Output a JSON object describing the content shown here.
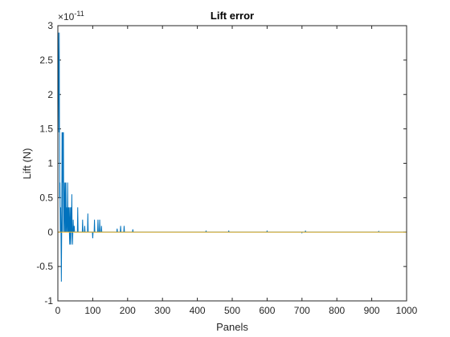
{
  "chart_data": {
    "type": "line",
    "title": "Lift error",
    "x_label": "Panels",
    "y_label": "Lift (N)",
    "y_multiplier": {
      "base": "×10",
      "exponent": "-11"
    },
    "xlim": [
      0,
      1000
    ],
    "xticks": [
      0,
      100,
      200,
      300,
      400,
      500,
      600,
      700,
      800,
      900,
      1000
    ],
    "ylim": [
      -1,
      3
    ],
    "yticks": [
      -1,
      -0.5,
      0,
      0.5,
      1,
      1.5,
      2,
      2.5,
      3
    ],
    "series": [
      {
        "color": "#0072BD",
        "x": [
          1,
          2,
          3,
          4,
          5,
          6,
          7,
          8,
          9,
          10,
          11,
          12,
          13,
          14,
          15,
          16,
          17,
          18,
          19,
          20,
          21,
          22,
          23,
          24,
          25,
          27,
          28,
          29,
          30,
          31,
          32,
          33,
          34,
          35,
          36,
          37,
          38,
          39,
          40,
          41,
          42,
          43,
          44,
          45,
          47,
          48,
          56,
          57,
          58,
          70,
          71,
          72,
          76,
          77,
          78,
          85,
          86,
          87,
          99,
          100,
          101,
          104,
          105,
          106,
          114,
          115,
          116,
          119,
          120,
          121,
          124,
          125,
          126,
          169,
          170,
          171,
          179,
          180,
          181,
          189,
          190,
          191,
          214,
          215,
          216,
          424,
          425,
          426,
          489,
          490,
          491,
          599,
          600,
          601,
          699,
          700,
          701,
          709,
          710,
          711,
          919,
          920,
          921,
          1000
        ],
        "values": [
          2.9,
          2.1,
          1.45,
          2.9,
          0.5,
          0.72,
          0,
          0.36,
          0,
          -0.72,
          0,
          1.45,
          0,
          1.45,
          0.72,
          1.45,
          0,
          0.72,
          0,
          0.36,
          0.72,
          0,
          0.72,
          0,
          0.36,
          0,
          0.72,
          0,
          0.36,
          0,
          0.36,
          0,
          -0.18,
          0.36,
          0,
          -0.18,
          0.36,
          0,
          0.55,
          0,
          -0.18,
          0,
          0.18,
          0,
          0.09,
          0,
          0,
          0.36,
          0,
          0,
          0.18,
          0,
          0,
          0.09,
          0,
          0,
          0.27,
          0,
          0,
          -0.09,
          0,
          0,
          0.18,
          0,
          0,
          0.18,
          0,
          0,
          0.18,
          0,
          0,
          0.09,
          0,
          0,
          0.05,
          0,
          0,
          0.09,
          0,
          0,
          0.09,
          0,
          0,
          0.04,
          0,
          0,
          0.02,
          0,
          0,
          0.02,
          0,
          0,
          0.02,
          0,
          0,
          -0.01,
          0,
          0,
          0.02,
          0,
          0,
          0.01,
          0,
          0
        ]
      },
      {
        "color": "#EDB120",
        "x": [
          0,
          1000
        ],
        "values": [
          0,
          0
        ]
      }
    ]
  }
}
